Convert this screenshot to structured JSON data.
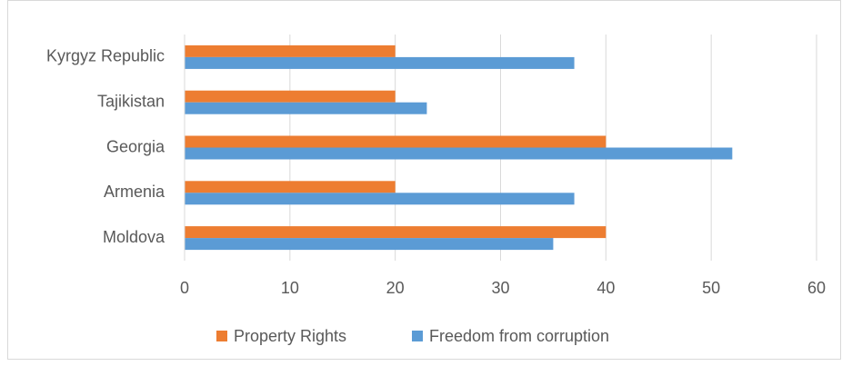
{
  "chart_data": {
    "type": "bar",
    "orientation": "horizontal",
    "categories": [
      "Kyrgyz Republic",
      "Tajikistan",
      "Georgia",
      "Armenia",
      "Moldova"
    ],
    "series": [
      {
        "name": "Property Rights",
        "color": "#ED7D31",
        "values": [
          20,
          20,
          40,
          20,
          40
        ]
      },
      {
        "name": "Freedom from corruption",
        "color": "#5B9BD5",
        "values": [
          37,
          23,
          52,
          37,
          35
        ]
      }
    ],
    "xlim": [
      0,
      60
    ],
    "xticks": [
      0,
      10,
      20,
      30,
      40,
      50,
      60
    ],
    "grid": true,
    "legend": "bottom"
  }
}
